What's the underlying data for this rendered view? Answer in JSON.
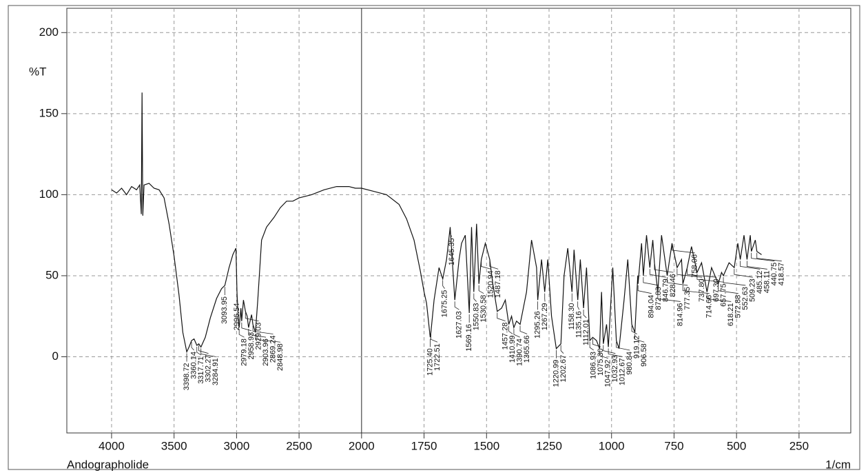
{
  "chart_data": {
    "type": "line",
    "sample_name": "Andographolide",
    "y_label": "%T",
    "x_label": "1/cm",
    "xlim": [
      4358,
      43
    ],
    "x_break": 2000,
    "x_break_zoom": 2,
    "ylim": [
      -47,
      215
    ],
    "xticks": [
      4000,
      3500,
      3000,
      2500,
      2000,
      1750,
      1500,
      1250,
      1000,
      750,
      500,
      250
    ],
    "yticks": [
      0,
      50,
      100,
      150,
      200
    ],
    "grid": true,
    "x": [
      4000,
      3960,
      3920,
      3880,
      3840,
      3800,
      3775,
      3762,
      3756,
      3750,
      3740,
      3700,
      3660,
      3620,
      3580,
      3540,
      3500,
      3460,
      3430,
      3398.72,
      3380,
      3360.14,
      3340,
      3317.71,
      3302.27,
      3284.91,
      3250,
      3210,
      3160,
      3120,
      3093.95,
      3060,
      3030,
      3005,
      2996.54,
      2985,
      2979.18,
      2965,
      2958.93,
      2945,
      2929.03,
      2915,
      2903.96,
      2880,
      2869.24,
      2848.98,
      2830,
      2800,
      2760,
      2700,
      2650,
      2600,
      2550,
      2500,
      2400,
      2300,
      2200,
      2100,
      2050,
      2000,
      1950,
      1900,
      1850,
      1820,
      1790,
      1765,
      1750,
      1740,
      1725.4,
      1722.51,
      1710,
      1690,
      1675.25,
      1660,
      1645.35,
      1627.03,
      1610,
      1600,
      1585,
      1569.16,
      1560,
      1550.83,
      1540,
      1530.58,
      1520.94,
      1505,
      1487.18,
      1475,
      1457.28,
      1440,
      1425,
      1410.99,
      1400,
      1390.74,
      1380,
      1365.66,
      1340,
      1320,
      1300,
      1295.26,
      1280,
      1267.29,
      1255,
      1240,
      1220.99,
      1202.67,
      1190,
      1175,
      1158.3,
      1150,
      1135.16,
      1125,
      1112.01,
      1100,
      1086.93,
      1075.3,
      1060,
      1047.92,
      1040,
      1032.93,
      1020,
      1012.67,
      995,
      980.84,
      970,
      950,
      935,
      919.12,
      906.58,
      895,
      894.04,
      880,
      872.83,
      860,
      846.79,
      835,
      828.46,
      814.96,
      800,
      777.35,
      758.06,
      737.8,
      720,
      714.66,
      697.3,
      680,
      657.75,
      640,
      618.21,
      600,
      572.88,
      560,
      552.63,
      530,
      509.23,
      495,
      485.12,
      470,
      458.11,
      445,
      440.75,
      425,
      418.57,
      400
    ],
    "series": [
      {
        "color": "#111111",
        "values": [
          103,
          101,
          104,
          100,
          105,
          103,
          106,
          88,
          163,
          87,
          106,
          107,
          104,
          103,
          98,
          82,
          62,
          38,
          15,
          3,
          6,
          10,
          11,
          7,
          8,
          6,
          12,
          24,
          36,
          42,
          44,
          55,
          63,
          67,
          40,
          22,
          18,
          30,
          22,
          35,
          28,
          25,
          18,
          26,
          20,
          15,
          35,
          72,
          80,
          86,
          92,
          96,
          96,
          98,
          100,
          103,
          105,
          105,
          104,
          104,
          102,
          100,
          94,
          85,
          72,
          53,
          40,
          33,
          12,
          15,
          35,
          55,
          48,
          60,
          80,
          35,
          60,
          70,
          75,
          27,
          80,
          40,
          82,
          45,
          60,
          70,
          60,
          45,
          28,
          30,
          35,
          20,
          25,
          18,
          22,
          20,
          40,
          72,
          55,
          35,
          60,
          40,
          60,
          25,
          5,
          8,
          50,
          67,
          40,
          66,
          35,
          60,
          30,
          55,
          10,
          12,
          10,
          5,
          40,
          8,
          20,
          6,
          55,
          10,
          5,
          35,
          60,
          20,
          15,
          50,
          45,
          70,
          50,
          75,
          55,
          72,
          58,
          40,
          75,
          50,
          70,
          55,
          60,
          45,
          55,
          68,
          52,
          58,
          40,
          55,
          45,
          52,
          50,
          58,
          55,
          70,
          60,
          75,
          60,
          75,
          65,
          72,
          65,
          63
        ]
      }
    ],
    "peaks": [
      3398.72,
      3360.14,
      3317.71,
      3302.27,
      3284.91,
      3093.95,
      2996.54,
      2979.18,
      2958.93,
      2929.03,
      2903.96,
      2869.24,
      2848.98,
      {
        "value": 1725.4,
        "label": "1725.40"
      },
      1722.51,
      1675.25,
      1645.35,
      1627.03,
      1569.16,
      1550.83,
      1530.58,
      1520.94,
      1487.18,
      1457.28,
      1410.99,
      1390.74,
      1365.66,
      1295.26,
      1267.29,
      1220.99,
      1202.67,
      {
        "value": 1158.3,
        "label": "1158.30"
      },
      1135.16,
      1112.01,
      1086.93,
      {
        "value": 1075.3,
        "label": "1075.30"
      },
      1047.92,
      1032.93,
      1012.67,
      980.84,
      919.12,
      906.58,
      894.04,
      872.83,
      846.79,
      828.46,
      814.96,
      777.35,
      758.06,
      {
        "value": 737.8,
        "label": "737.80"
      },
      714.66,
      {
        "value": 697.3,
        "label": "697.30"
      },
      657.75,
      618.21,
      572.88,
      552.63,
      509.23,
      485.12,
      458.11,
      440.75,
      418.57
    ]
  }
}
